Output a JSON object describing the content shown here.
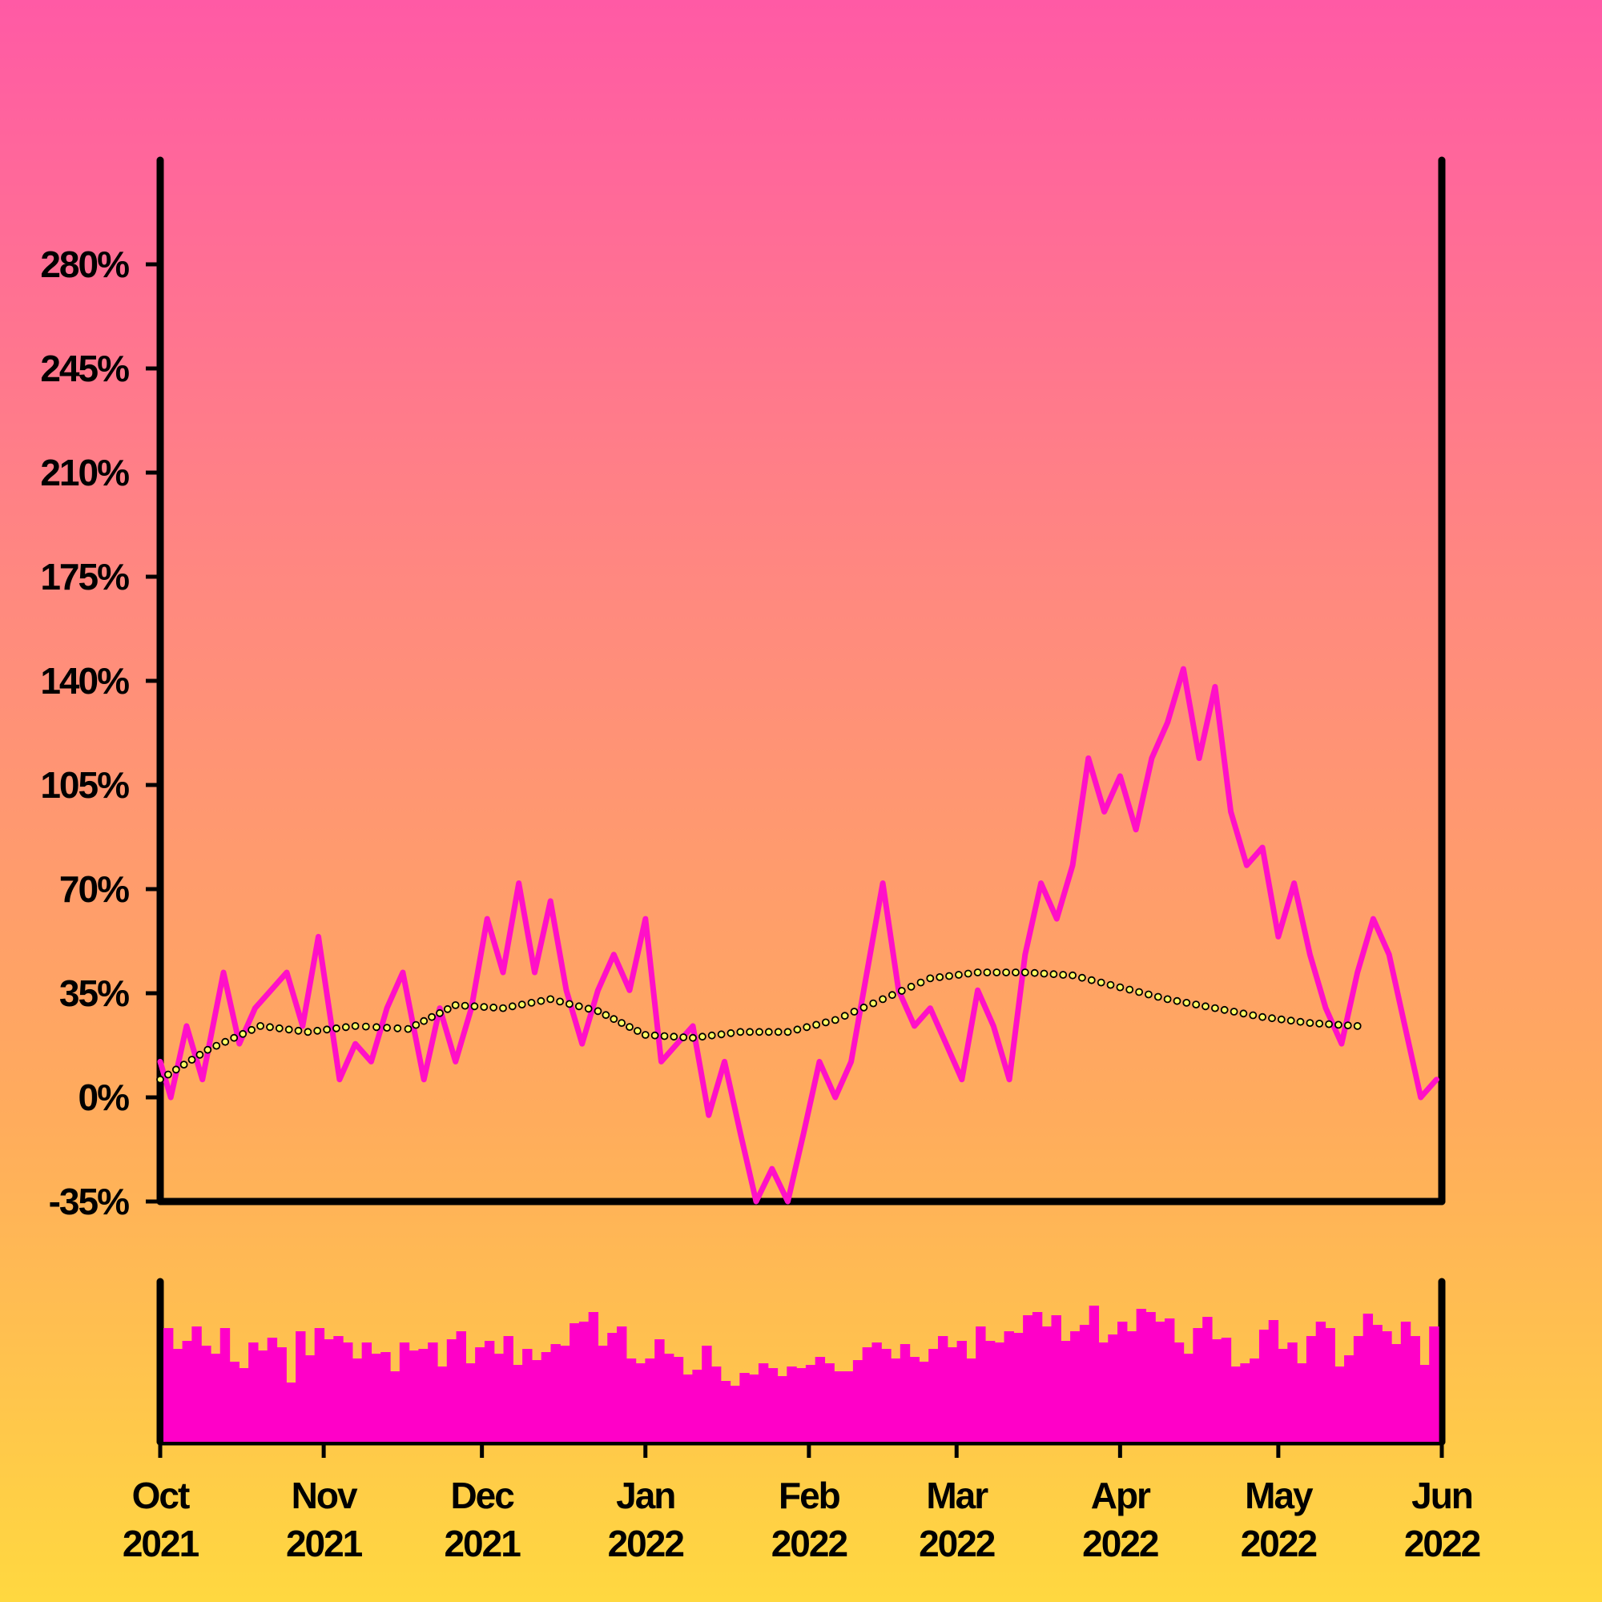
{
  "chart_data": {
    "type": "line",
    "panels": [
      "price",
      "volume"
    ],
    "x_axis": {
      "type": "date",
      "range": [
        "2021-10-01",
        "2022-06-01"
      ],
      "tick_labels": [
        {
          "month": "Oct",
          "year": "2021",
          "date": "2021-10-01"
        },
        {
          "month": "Nov",
          "year": "2021",
          "date": "2021-11-01"
        },
        {
          "month": "Dec",
          "year": "2021",
          "date": "2021-12-01"
        },
        {
          "month": "Jan",
          "year": "2022",
          "date": "2022-01-01"
        },
        {
          "month": "Feb",
          "year": "2022",
          "date": "2022-02-01"
        },
        {
          "month": "Mar",
          "year": "2022",
          "date": "2022-03-01"
        },
        {
          "month": "Apr",
          "year": "2022",
          "date": "2022-04-01"
        },
        {
          "month": "May",
          "year": "2022",
          "date": "2022-05-01"
        },
        {
          "month": "Jun",
          "year": "2022",
          "date": "2022-06-01"
        }
      ]
    },
    "y_axis": {
      "unit": "%",
      "range": [
        -35,
        315
      ],
      "ticks": [
        -35,
        0,
        35,
        70,
        105,
        140,
        175,
        210,
        245,
        280
      ],
      "tick_labels": [
        "-35%",
        "0%",
        "35%",
        "70%",
        "105%",
        "140%",
        "175%",
        "210%",
        "245%",
        "280%"
      ]
    },
    "grid": false,
    "legend": "none",
    "series": [
      {
        "role": "return",
        "style": "solid line",
        "color": "#ff10c8",
        "points": [
          [
            "2021-10-01",
            12
          ],
          [
            "2021-10-03",
            0
          ],
          [
            "2021-10-06",
            24
          ],
          [
            "2021-10-09",
            6
          ],
          [
            "2021-10-13",
            42
          ],
          [
            "2021-10-16",
            18
          ],
          [
            "2021-10-19",
            30
          ],
          [
            "2021-10-22",
            36
          ],
          [
            "2021-10-25",
            42
          ],
          [
            "2021-10-28",
            24
          ],
          [
            "2021-10-31",
            54
          ],
          [
            "2021-11-04",
            6
          ],
          [
            "2021-11-07",
            18
          ],
          [
            "2021-11-10",
            12
          ],
          [
            "2021-11-13",
            30
          ],
          [
            "2021-11-16",
            42
          ],
          [
            "2021-11-20",
            6
          ],
          [
            "2021-11-23",
            30
          ],
          [
            "2021-11-26",
            12
          ],
          [
            "2021-11-29",
            30
          ],
          [
            "2021-12-02",
            60
          ],
          [
            "2021-12-05",
            42
          ],
          [
            "2021-12-08",
            72
          ],
          [
            "2021-12-11",
            42
          ],
          [
            "2021-12-14",
            66
          ],
          [
            "2021-12-17",
            36
          ],
          [
            "2021-12-20",
            18
          ],
          [
            "2021-12-23",
            36
          ],
          [
            "2021-12-26",
            48
          ],
          [
            "2021-12-29",
            36
          ],
          [
            "2022-01-01",
            60
          ],
          [
            "2022-01-04",
            12
          ],
          [
            "2022-01-07",
            18
          ],
          [
            "2022-01-10",
            24
          ],
          [
            "2022-01-13",
            -6
          ],
          [
            "2022-01-16",
            12
          ],
          [
            "2022-01-19",
            -12
          ],
          [
            "2022-01-22",
            -35
          ],
          [
            "2022-01-25",
            -24
          ],
          [
            "2022-01-28",
            -35
          ],
          [
            "2022-01-31",
            -12
          ],
          [
            "2022-02-03",
            12
          ],
          [
            "2022-02-06",
            0
          ],
          [
            "2022-02-09",
            12
          ],
          [
            "2022-02-12",
            42
          ],
          [
            "2022-02-15",
            72
          ],
          [
            "2022-02-18",
            36
          ],
          [
            "2022-02-21",
            24
          ],
          [
            "2022-02-24",
            30
          ],
          [
            "2022-02-27",
            18
          ],
          [
            "2022-03-02",
            6
          ],
          [
            "2022-03-05",
            36
          ],
          [
            "2022-03-08",
            24
          ],
          [
            "2022-03-11",
            6
          ],
          [
            "2022-03-14",
            48
          ],
          [
            "2022-03-17",
            72
          ],
          [
            "2022-03-20",
            60
          ],
          [
            "2022-03-23",
            78
          ],
          [
            "2022-03-26",
            114
          ],
          [
            "2022-03-29",
            96
          ],
          [
            "2022-04-01",
            108
          ],
          [
            "2022-04-04",
            90
          ],
          [
            "2022-04-07",
            114
          ],
          [
            "2022-04-10",
            126
          ],
          [
            "2022-04-13",
            144
          ],
          [
            "2022-04-16",
            114
          ],
          [
            "2022-04-19",
            138
          ],
          [
            "2022-04-22",
            96
          ],
          [
            "2022-04-25",
            78
          ],
          [
            "2022-04-28",
            84
          ],
          [
            "2022-05-01",
            54
          ],
          [
            "2022-05-04",
            72
          ],
          [
            "2022-05-07",
            48
          ],
          [
            "2022-05-10",
            30
          ],
          [
            "2022-05-13",
            18
          ],
          [
            "2022-05-16",
            42
          ],
          [
            "2022-05-19",
            60
          ],
          [
            "2022-05-22",
            48
          ],
          [
            "2022-05-25",
            24
          ],
          [
            "2022-05-28",
            0
          ],
          [
            "2022-05-31",
            6
          ]
        ]
      },
      {
        "role": "moving-average",
        "style": "dotted line (open circle markers)",
        "color": "#ffff66",
        "points": [
          [
            "2021-10-01",
            6
          ],
          [
            "2021-10-10",
            16
          ],
          [
            "2021-10-20",
            24
          ],
          [
            "2021-10-29",
            22
          ],
          [
            "2021-11-07",
            24
          ],
          [
            "2021-11-17",
            23
          ],
          [
            "2021-11-26",
            31
          ],
          [
            "2021-12-05",
            30
          ],
          [
            "2021-12-14",
            33
          ],
          [
            "2021-12-23",
            29
          ],
          [
            "2022-01-01",
            21
          ],
          [
            "2022-01-10",
            20
          ],
          [
            "2022-01-19",
            22
          ],
          [
            "2022-01-28",
            22
          ],
          [
            "2022-02-06",
            26
          ],
          [
            "2022-02-15",
            33
          ],
          [
            "2022-02-24",
            40
          ],
          [
            "2022-03-05",
            42
          ],
          [
            "2022-03-14",
            42
          ],
          [
            "2022-03-23",
            41
          ],
          [
            "2022-04-01",
            37
          ],
          [
            "2022-04-10",
            33
          ],
          [
            "2022-04-19",
            30
          ],
          [
            "2022-04-28",
            27
          ],
          [
            "2022-05-07",
            25
          ],
          [
            "2022-05-16",
            24
          ]
        ]
      }
    ],
    "volume": {
      "type": "bar",
      "color": "#ff00c8",
      "relative_heights": [
        0.71,
        0.58,
        0.63,
        0.72,
        0.6,
        0.55,
        0.71,
        0.5,
        0.46,
        0.62,
        0.57,
        0.65,
        0.59,
        0.37,
        0.69,
        0.54,
        0.71,
        0.64,
        0.66,
        0.62,
        0.52,
        0.62,
        0.55,
        0.56,
        0.44,
        0.62,
        0.57,
        0.58,
        0.62,
        0.47,
        0.64,
        0.69,
        0.49,
        0.59,
        0.63,
        0.55,
        0.66,
        0.48,
        0.58,
        0.51,
        0.56,
        0.61,
        0.6,
        0.74,
        0.75,
        0.81,
        0.6,
        0.68,
        0.72,
        0.52,
        0.49,
        0.52,
        0.64,
        0.55,
        0.53,
        0.42,
        0.45,
        0.6,
        0.47,
        0.38,
        0.35,
        0.43,
        0.42,
        0.49,
        0.46,
        0.41,
        0.47,
        0.46,
        0.48,
        0.53,
        0.49,
        0.44,
        0.44,
        0.51,
        0.59,
        0.62,
        0.58,
        0.52,
        0.61,
        0.53,
        0.5,
        0.58,
        0.66,
        0.59,
        0.63,
        0.52,
        0.72,
        0.63,
        0.62,
        0.69,
        0.68,
        0.79,
        0.81,
        0.72,
        0.79,
        0.63,
        0.69,
        0.73,
        0.85,
        0.62,
        0.67,
        0.75,
        0.69,
        0.83,
        0.81,
        0.75,
        0.77,
        0.62,
        0.55,
        0.71,
        0.78,
        0.64,
        0.65,
        0.47,
        0.49,
        0.52,
        0.7,
        0.76,
        0.58,
        0.62,
        0.49,
        0.66,
        0.75,
        0.71,
        0.47,
        0.54,
        0.66,
        0.8,
        0.73,
        0.69,
        0.61,
        0.75,
        0.66,
        0.48,
        0.72
      ]
    }
  }
}
